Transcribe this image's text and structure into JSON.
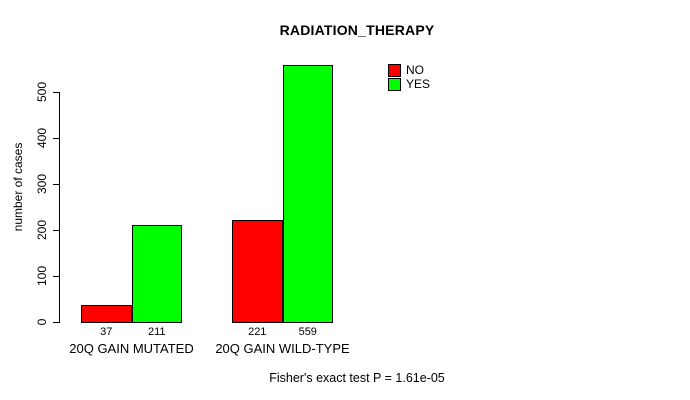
{
  "chart_data": {
    "type": "bar",
    "title": "RADIATION_THERAPY",
    "ylabel": "number of cases",
    "xlabel": "",
    "categories": [
      "20Q GAIN MUTATED",
      "20Q GAIN WILD-TYPE"
    ],
    "series": [
      {
        "name": "NO",
        "color": "#ff0000",
        "values": [
          37,
          221
        ]
      },
      {
        "name": "YES",
        "color": "#00ff00",
        "values": [
          211,
          559
        ]
      }
    ],
    "bar_value_labels": [
      [
        37,
        211
      ],
      [
        221,
        559
      ]
    ],
    "yticks": [
      0,
      100,
      200,
      300,
      400,
      500
    ],
    "ylim": [
      0,
      560
    ],
    "grid": false,
    "legend_position": "top-right",
    "legend_items": [
      {
        "label": "NO",
        "color": "#ff0000"
      },
      {
        "label": "YES",
        "color": "#00ff00"
      }
    ],
    "annotation": "Fisher's exact test P = 1.61e-05"
  },
  "colors": {
    "no": "#ff0000",
    "yes": "#00ff00",
    "axis": "#000000",
    "background": "#ffffff"
  }
}
